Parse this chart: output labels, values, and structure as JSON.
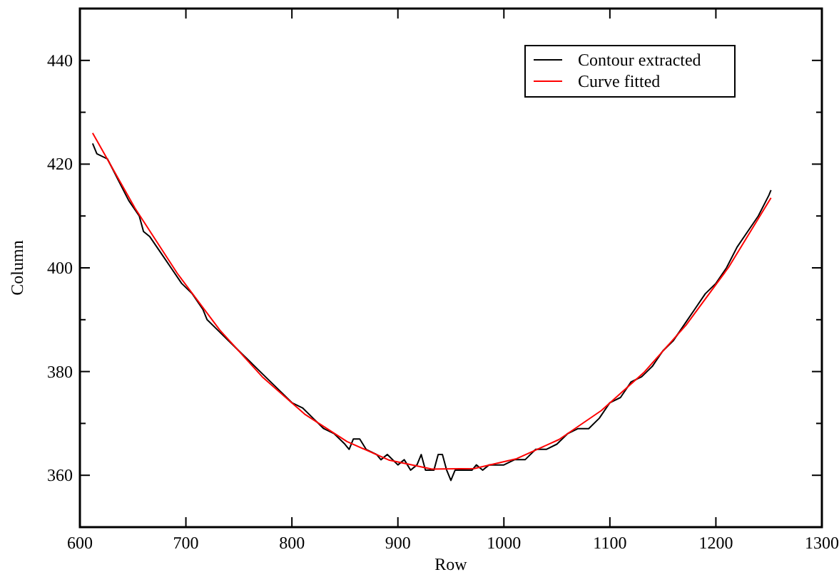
{
  "chart_data": {
    "type": "line",
    "xlabel": "Row",
    "ylabel": "Column",
    "xlim": [
      600,
      1300
    ],
    "ylim": [
      350,
      450
    ],
    "xticks": [
      600,
      700,
      800,
      900,
      1000,
      1100,
      1200,
      1300
    ],
    "yticks": [
      {
        "value": 350,
        "label": null
      },
      360,
      {
        "value": 370,
        "label": null
      },
      380,
      {
        "value": 390,
        "label": null
      },
      400,
      {
        "value": 410,
        "label": null
      },
      420,
      {
        "value": 430,
        "label": null
      },
      440,
      {
        "value": 450,
        "label": null
      }
    ],
    "grid": false,
    "legend": "top right",
    "marker": "none",
    "line_style": "solid",
    "series": [
      {
        "name": "Contour extracted",
        "color": "#000000",
        "x": [
          612,
          616,
          626,
          636,
          646,
          656,
          660,
          666,
          676,
          686,
          696,
          706,
          716,
          720,
          730,
          740,
          750,
          760,
          770,
          780,
          790,
          800,
          810,
          820,
          830,
          840,
          850,
          854,
          858,
          864,
          870,
          880,
          884,
          890,
          900,
          906,
          912,
          918,
          922,
          926,
          934,
          938,
          942,
          946,
          950,
          954,
          970,
          974,
          980,
          986,
          1000,
          1010,
          1020,
          1030,
          1040,
          1050,
          1060,
          1070,
          1080,
          1090,
          1100,
          1110,
          1120,
          1130,
          1140,
          1150,
          1160,
          1170,
          1180,
          1190,
          1200,
          1210,
          1220,
          1230,
          1240,
          1250,
          1252
        ],
        "values": [
          424,
          422,
          421,
          417,
          413,
          410,
          407,
          406,
          403,
          400,
          397,
          395,
          392,
          390,
          388,
          386,
          384,
          382,
          380,
          378,
          376,
          374,
          373,
          371,
          369,
          368,
          366,
          365,
          367,
          367,
          365,
          364,
          363,
          364,
          362,
          363,
          361,
          362,
          364,
          361,
          361,
          364,
          364,
          361,
          359,
          361,
          361,
          362,
          361,
          362,
          362,
          363,
          363,
          365,
          365,
          366,
          368,
          369,
          369,
          371,
          374,
          375,
          378,
          379,
          381,
          384,
          386,
          389,
          392,
          395,
          397,
          400,
          404,
          407,
          410,
          414,
          415
        ]
      },
      {
        "name": "Curve fitted",
        "color": "#ff0000",
        "x": [
          612,
          652,
          692,
          732,
          772,
          812,
          852,
          892,
          932,
          972,
          1012,
          1052,
          1092,
          1132,
          1172,
          1212,
          1252
        ],
        "values": [
          426,
          411.5,
          398.9,
          388,
          379,
          371.8,
          366.5,
          362.9,
          361.2,
          361.3,
          363.2,
          366.9,
          372.5,
          379.8,
          389,
          400.1,
          413.5
        ]
      }
    ]
  }
}
